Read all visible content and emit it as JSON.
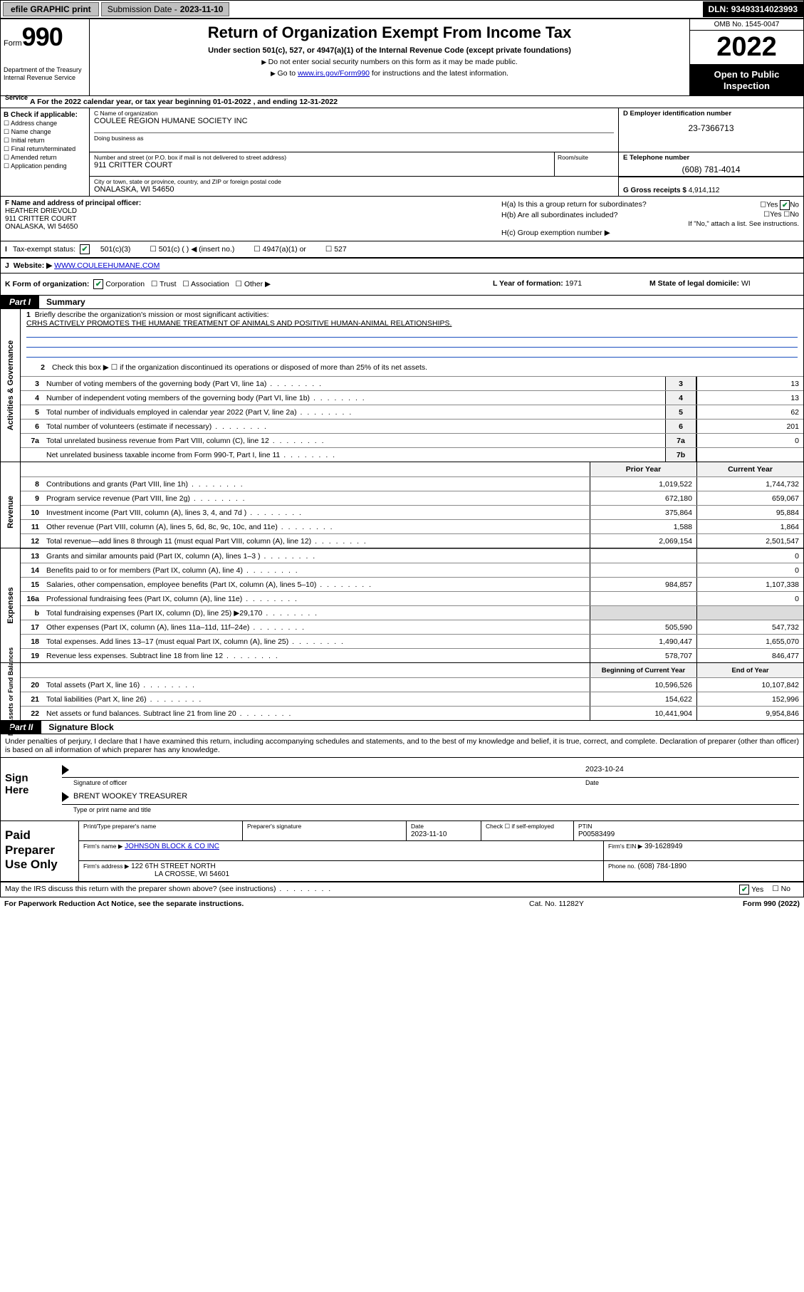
{
  "topbar": {
    "efile_btn": "efile GRAPHIC print",
    "sub_label": "Submission Date -",
    "sub_date": "2023-11-10",
    "dln_label": "DLN:",
    "dln": "93493314023993"
  },
  "header": {
    "form_word": "Form",
    "form_num": "990",
    "dept": "Department of the Treasury\nInternal Revenue Service",
    "title": "Return of Organization Exempt From Income Tax",
    "subtitle": "Under section 501(c), 527, or 4947(a)(1) of the Internal Revenue Code (except private foundations)",
    "note1": "Do not enter social security numbers on this form as it may be made public.",
    "note2_pre": "Go to ",
    "note2_link": "www.irs.gov/Form990",
    "note2_post": " for instructions and the latest information.",
    "omb": "OMB No. 1545-0047",
    "year": "2022",
    "open": "Open to Public Inspection"
  },
  "row_a": {
    "text": "For the 2022 calendar year, or tax year beginning ",
    "begin": "01-01-2022",
    "mid": " , and ending ",
    "end": "12-31-2022"
  },
  "col_b": {
    "head": "B Check if applicable:",
    "items": [
      "Address change",
      "Name change",
      "Initial return",
      "Final return/terminated",
      "Amended return",
      "Application pending"
    ]
  },
  "c": {
    "name_lbl": "C Name of organization",
    "name": "COULEE REGION HUMANE SOCIETY INC",
    "dba_lbl": "Doing business as",
    "street_lbl": "Number and street (or P.O. box if mail is not delivered to street address)",
    "room_lbl": "Room/suite",
    "street": "911 CRITTER COURT",
    "city_lbl": "City or town, state or province, country, and ZIP or foreign postal code",
    "city": "ONALASKA, WI  54650"
  },
  "d": {
    "lbl": "D Employer identification number",
    "val": "23-7366713"
  },
  "e": {
    "lbl": "E Telephone number",
    "val": "(608) 781-4014"
  },
  "g": {
    "lbl": "G Gross receipts $",
    "val": "4,914,112"
  },
  "f": {
    "lbl": "F Name and address of principal officer:",
    "name": "HEATHER DRIEVOLD",
    "addr1": "911 CRITTER COURT",
    "addr2": "ONALASKA, WI  54650"
  },
  "h": {
    "a": "H(a)  Is this a group return for subordinates?",
    "b": "H(b)  Are all subordinates included?",
    "c": "H(c)  Group exemption number ▶",
    "attach": "If \"No,\" attach a list. See instructions.",
    "yes": "Yes",
    "no": "No"
  },
  "i": {
    "lbl": "Tax-exempt status:",
    "opts": [
      "501(c)(3)",
      "501(c) (  ) ◀ (insert no.)",
      "4947(a)(1) or",
      "527"
    ]
  },
  "j": {
    "lbl": "Website: ▶",
    "val": "WWW.COULEEHUMANE.COM"
  },
  "k": {
    "lbl": "K Form of organization:",
    "opts": [
      "Corporation",
      "Trust",
      "Association",
      "Other ▶"
    ]
  },
  "l": {
    "lbl": "L Year of formation:",
    "val": "1971"
  },
  "m": {
    "lbl": "M State of legal domicile:",
    "val": "WI"
  },
  "part1": {
    "tag": "Part I",
    "title": "Summary",
    "q1_lbl": "Briefly describe the organization's mission or most significant activities:",
    "q1_val": "CRHS ACTIVELY PROMOTES THE HUMANE TREATMENT OF ANIMALS AND POSITIVE HUMAN-ANIMAL RELATIONSHIPS.",
    "q2": "Check this box ▶ ☐  if the organization discontinued its operations or disposed of more than 25% of its net assets.",
    "lines": [
      {
        "n": "3",
        "t": "Number of voting members of the governing body (Part VI, line 1a)",
        "box": "3",
        "v": "13"
      },
      {
        "n": "4",
        "t": "Number of independent voting members of the governing body (Part VI, line 1b)",
        "box": "4",
        "v": "13"
      },
      {
        "n": "5",
        "t": "Total number of individuals employed in calendar year 2022 (Part V, line 2a)",
        "box": "5",
        "v": "62"
      },
      {
        "n": "6",
        "t": "Total number of volunteers (estimate if necessary)",
        "box": "6",
        "v": "201"
      },
      {
        "n": "7a",
        "t": "Total unrelated business revenue from Part VIII, column (C), line 12",
        "box": "7a",
        "v": "0"
      },
      {
        "n": "",
        "t": "Net unrelated business taxable income from Form 990-T, Part I, line 11",
        "box": "7b",
        "v": ""
      }
    ],
    "prior_lbl": "Prior Year",
    "current_lbl": "Current Year",
    "revenue": [
      {
        "n": "8",
        "t": "Contributions and grants (Part VIII, line 1h)",
        "p": "1,019,522",
        "c": "1,744,732"
      },
      {
        "n": "9",
        "t": "Program service revenue (Part VIII, line 2g)",
        "p": "672,180",
        "c": "659,067"
      },
      {
        "n": "10",
        "t": "Investment income (Part VIII, column (A), lines 3, 4, and 7d )",
        "p": "375,864",
        "c": "95,884"
      },
      {
        "n": "11",
        "t": "Other revenue (Part VIII, column (A), lines 5, 6d, 8c, 9c, 10c, and 11e)",
        "p": "1,588",
        "c": "1,864"
      },
      {
        "n": "12",
        "t": "Total revenue—add lines 8 through 11 (must equal Part VIII, column (A), line 12)",
        "p": "2,069,154",
        "c": "2,501,547"
      }
    ],
    "expenses": [
      {
        "n": "13",
        "t": "Grants and similar amounts paid (Part IX, column (A), lines 1–3 )",
        "p": "",
        "c": "0"
      },
      {
        "n": "14",
        "t": "Benefits paid to or for members (Part IX, column (A), line 4)",
        "p": "",
        "c": "0"
      },
      {
        "n": "15",
        "t": "Salaries, other compensation, employee benefits (Part IX, column (A), lines 5–10)",
        "p": "984,857",
        "c": "1,107,338"
      },
      {
        "n": "16a",
        "t": "Professional fundraising fees (Part IX, column (A), line 11e)",
        "p": "",
        "c": "0"
      },
      {
        "n": "b",
        "t": "Total fundraising expenses (Part IX, column (D), line 25) ▶29,170",
        "p": "shade",
        "c": "shade"
      },
      {
        "n": "17",
        "t": "Other expenses (Part IX, column (A), lines 11a–11d, 11f–24e)",
        "p": "505,590",
        "c": "547,732"
      },
      {
        "n": "18",
        "t": "Total expenses. Add lines 13–17 (must equal Part IX, column (A), line 25)",
        "p": "1,490,447",
        "c": "1,655,070"
      },
      {
        "n": "19",
        "t": "Revenue less expenses. Subtract line 18 from line 12",
        "p": "578,707",
        "c": "846,477"
      }
    ],
    "netassets_hdr": {
      "p": "Beginning of Current Year",
      "c": "End of Year"
    },
    "netassets": [
      {
        "n": "20",
        "t": "Total assets (Part X, line 16)",
        "p": "10,596,526",
        "c": "10,107,842"
      },
      {
        "n": "21",
        "t": "Total liabilities (Part X, line 26)",
        "p": "154,622",
        "c": "152,996"
      },
      {
        "n": "22",
        "t": "Net assets or fund balances. Subtract line 21 from line 20",
        "p": "10,441,904",
        "c": "9,954,846"
      }
    ],
    "side_ag": "Activities & Governance",
    "side_rev": "Revenue",
    "side_exp": "Expenses",
    "side_na": "Net Assets or Fund Balances"
  },
  "part2": {
    "tag": "Part II",
    "title": "Signature Block",
    "disclaimer": "Under penalties of perjury, I declare that I have examined this return, including accompanying schedules and statements, and to the best of my knowledge and belief, it is true, correct, and complete. Declaration of preparer (other than officer) is based on all information of which preparer has any knowledge.",
    "sign_here": "Sign Here",
    "sig_lbl": "Signature of officer",
    "sig_date": "2023-10-24",
    "date_lbl": "Date",
    "officer": "BRENT WOOKEY TREASURER",
    "officer_lbl": "Type or print name and title"
  },
  "paid": {
    "title": "Paid Preparer Use Only",
    "h1": "Print/Type preparer's name",
    "h2": "Preparer's signature",
    "h3": "Date",
    "h3v": "2023-11-10",
    "h4": "Check ☐ if self-employed",
    "h5": "PTIN",
    "h5v": "P00583499",
    "firm_lbl": "Firm's name    ▶",
    "firm": "JOHNSON BLOCK & CO INC",
    "ein_lbl": "Firm's EIN ▶",
    "ein": "39-1628949",
    "addr_lbl": "Firm's address ▶",
    "addr1": "122 6TH STREET NORTH",
    "addr2": "LA CROSSE, WI  54601",
    "phone_lbl": "Phone no.",
    "phone": "(608) 784-1890"
  },
  "footer": {
    "discuss": "May the IRS discuss this return with the preparer shown above? (see instructions)",
    "yes": "Yes",
    "no": "No",
    "pra": "For Paperwork Reduction Act Notice, see the separate instructions.",
    "cat": "Cat. No. 11282Y",
    "form": "Form 990 (2022)"
  }
}
